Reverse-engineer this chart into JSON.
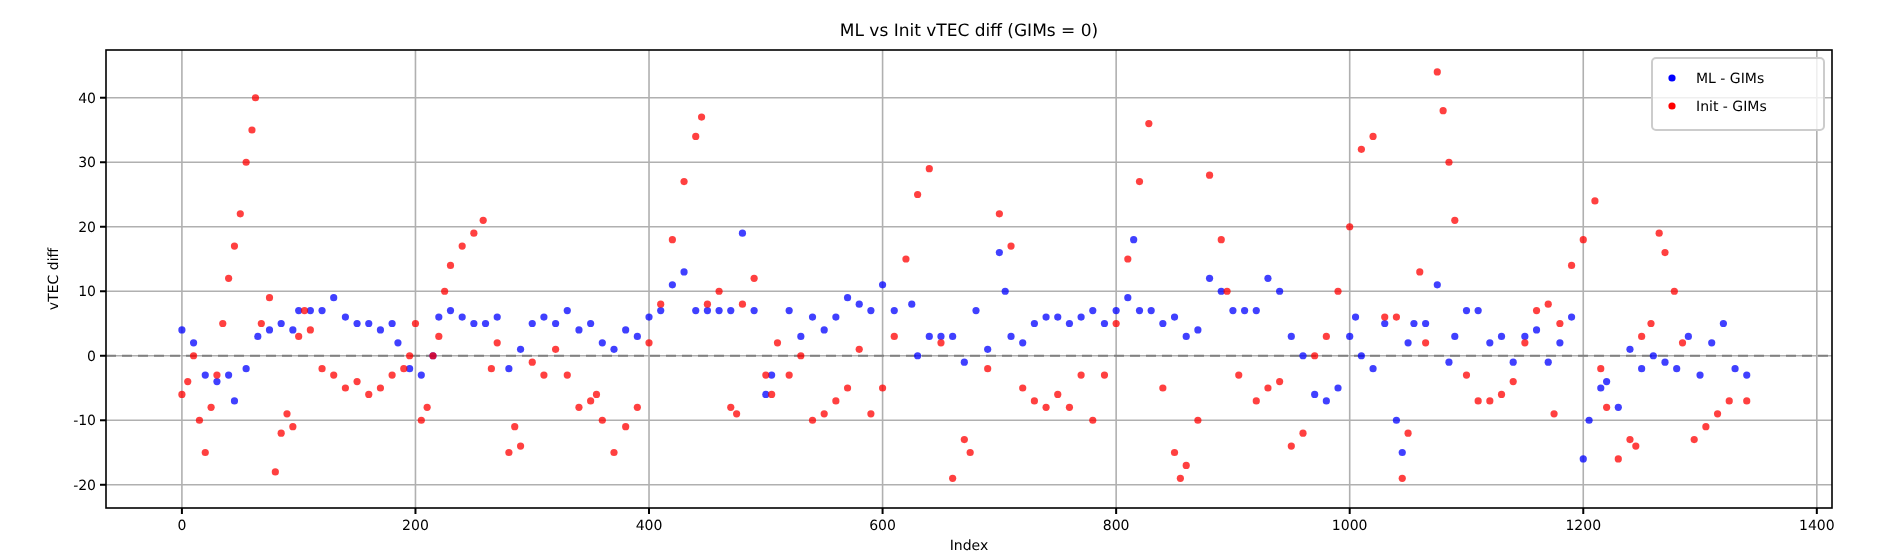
{
  "chart_data": {
    "type": "scatter",
    "title": "ML vs Init vTEC diff (GIMs = 0)",
    "xlabel": "Index",
    "ylabel": "vTEC diff",
    "xlim": [
      -65,
      1413
    ],
    "ylim": [
      -23.6,
      47.4
    ],
    "xticks": [
      0,
      200,
      400,
      600,
      800,
      1000,
      1200,
      1400
    ],
    "yticks": [
      -20,
      -10,
      0,
      10,
      20,
      30,
      40
    ],
    "grid": true,
    "legend": "top right",
    "marker": "circle",
    "ref_lines": [
      {
        "axis": "y",
        "value": 0,
        "color": "#808080",
        "line_style": "dashed"
      }
    ],
    "series": [
      {
        "name": "ML - GIMs",
        "color": "#0000ff",
        "x": [
          0,
          10,
          20,
          30,
          40,
          45,
          55,
          65,
          75,
          85,
          95,
          100,
          110,
          120,
          130,
          140,
          150,
          160,
          170,
          180,
          185,
          195,
          205,
          215,
          220,
          230,
          240,
          250,
          260,
          270,
          280,
          290,
          300,
          310,
          320,
          330,
          340,
          350,
          360,
          370,
          380,
          390,
          400,
          410,
          420,
          430,
          440,
          450,
          460,
          470,
          480,
          490,
          500,
          505,
          520,
          530,
          540,
          550,
          560,
          570,
          580,
          590,
          600,
          610,
          625,
          630,
          640,
          650,
          660,
          670,
          680,
          690,
          700,
          705,
          710,
          720,
          730,
          740,
          750,
          760,
          770,
          780,
          790,
          800,
          810,
          815,
          820,
          830,
          840,
          850,
          860,
          870,
          880,
          890,
          900,
          910,
          920,
          930,
          940,
          950,
          960,
          970,
          980,
          990,
          1000,
          1005,
          1010,
          1020,
          1030,
          1040,
          1045,
          1050,
          1055,
          1065,
          1075,
          1085,
          1090,
          1100,
          1110,
          1120,
          1130,
          1140,
          1150,
          1160,
          1170,
          1180,
          1190,
          1200,
          1205,
          1215,
          1220,
          1230,
          1240,
          1250,
          1260,
          1270,
          1280,
          1290,
          1300,
          1310,
          1320,
          1330,
          1340
        ],
        "values": [
          4,
          2,
          -3,
          -4,
          -3,
          -7,
          -2,
          3,
          4,
          5,
          4,
          7,
          7,
          7,
          9,
          6,
          5,
          5,
          4,
          5,
          2,
          -2,
          -3,
          0,
          6,
          7,
          6,
          5,
          5,
          6,
          -2,
          1,
          5,
          6,
          5,
          7,
          4,
          5,
          2,
          1,
          4,
          3,
          6,
          7,
          11,
          13,
          7,
          7,
          7,
          7,
          19,
          7,
          -6,
          -3,
          7,
          3,
          6,
          4,
          6,
          9,
          8,
          7,
          11,
          7,
          8,
          0,
          3,
          3,
          3,
          -1,
          7,
          1,
          16,
          10,
          3,
          2,
          5,
          6,
          6,
          5,
          6,
          7,
          5,
          7,
          9,
          18,
          7,
          7,
          5,
          6,
          3,
          4,
          12,
          10,
          7,
          7,
          7,
          12,
          10,
          3,
          0,
          -6,
          -7,
          -5,
          3,
          6,
          0,
          -2,
          5,
          -10,
          -15,
          2,
          5,
          5,
          11,
          -1,
          3,
          7,
          7,
          2,
          3,
          -1,
          3,
          4,
          -1,
          2,
          6,
          -16,
          -10,
          -5,
          -4,
          -8,
          1,
          -2,
          0,
          -1,
          -2,
          3,
          -3,
          2,
          5,
          -2,
          -3
        ]
      },
      {
        "name": "Init - GIMs",
        "color": "#ff0000",
        "x": [
          0,
          5,
          10,
          15,
          20,
          25,
          30,
          35,
          40,
          45,
          50,
          55,
          60,
          63,
          68,
          75,
          80,
          85,
          90,
          95,
          100,
          105,
          110,
          120,
          130,
          140,
          150,
          160,
          170,
          180,
          190,
          195,
          200,
          205,
          210,
          215,
          220,
          225,
          230,
          240,
          250,
          258,
          265,
          270,
          280,
          285,
          290,
          300,
          310,
          320,
          330,
          340,
          350,
          355,
          360,
          370,
          380,
          390,
          400,
          410,
          420,
          430,
          440,
          445,
          450,
          460,
          470,
          475,
          480,
          490,
          500,
          505,
          510,
          520,
          530,
          540,
          550,
          560,
          570,
          580,
          590,
          600,
          610,
          620,
          630,
          640,
          650,
          660,
          670,
          675,
          690,
          700,
          710,
          720,
          730,
          740,
          750,
          760,
          770,
          780,
          790,
          800,
          810,
          820,
          828,
          840,
          850,
          855,
          860,
          870,
          880,
          890,
          895,
          905,
          920,
          930,
          940,
          950,
          960,
          970,
          980,
          990,
          1000,
          1010,
          1020,
          1030,
          1040,
          1045,
          1050,
          1060,
          1065,
          1075,
          1080,
          1085,
          1090,
          1100,
          1110,
          1120,
          1130,
          1140,
          1150,
          1160,
          1170,
          1175,
          1180,
          1190,
          1200,
          1210,
          1215,
          1220,
          1230,
          1240,
          1245,
          1250,
          1258,
          1265,
          1270,
          1278,
          1285,
          1295,
          1305,
          1315,
          1325,
          1340
        ],
        "values": [
          -6,
          -4,
          0,
          -10,
          -15,
          -8,
          -3,
          5,
          12,
          17,
          22,
          30,
          35,
          40,
          5,
          9,
          -18,
          -12,
          -9,
          -11,
          3,
          7,
          4,
          -2,
          -3,
          -5,
          -4,
          -6,
          -5,
          -3,
          -2,
          0,
          5,
          -10,
          -8,
          0,
          3,
          10,
          14,
          17,
          19,
          21,
          -2,
          2,
          -15,
          -11,
          -14,
          -1,
          -3,
          1,
          -3,
          -8,
          -7,
          -6,
          -10,
          -15,
          -11,
          -8,
          2,
          8,
          18,
          27,
          34,
          37,
          8,
          10,
          -8,
          -9,
          8,
          12,
          -3,
          -6,
          2,
          -3,
          0,
          -10,
          -9,
          -7,
          -5,
          1,
          -9,
          -5,
          3,
          15,
          25,
          29,
          2,
          -19,
          -13,
          -15,
          -2,
          22,
          17,
          -5,
          -7,
          -8,
          -6,
          -8,
          -3,
          -10,
          -3,
          5,
          15,
          27,
          36,
          -5,
          -15,
          -19,
          -17,
          -10,
          28,
          18,
          10,
          -3,
          -7,
          -5,
          -4,
          -14,
          -12,
          0,
          3,
          10,
          20,
          32,
          34,
          6,
          6,
          -19,
          -12,
          13,
          2,
          44,
          38,
          30,
          21,
          -3,
          -7,
          -7,
          -6,
          -4,
          2,
          7,
          8,
          -9,
          5,
          14,
          18,
          24,
          -2,
          -8,
          -16,
          -13,
          -14,
          3,
          5,
          19,
          16,
          10,
          2,
          -13,
          -11,
          -9,
          -7,
          -7
        ]
      }
    ]
  }
}
